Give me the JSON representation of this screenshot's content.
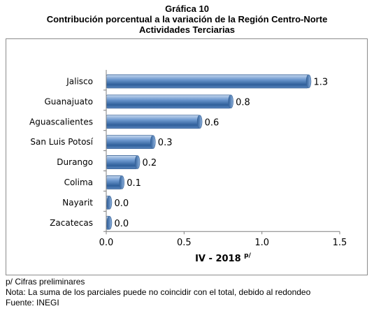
{
  "header": {
    "figure_label": "Gráfica 10",
    "title_line1": "Contribución porcentual a la variación de la Región Centro-Norte",
    "title_line2": "Actividades Terciarias"
  },
  "chart_data": {
    "type": "bar",
    "orientation": "horizontal",
    "categories": [
      "Jalisco",
      "Guanajuato",
      "Aguascalientes",
      "San Luis Potosí",
      "Durango",
      "Colima",
      "Nayarit",
      "Zacatecas"
    ],
    "values": [
      1.3,
      0.8,
      0.6,
      0.3,
      0.2,
      0.1,
      0.02,
      0.02
    ],
    "data_labels": [
      "1.3",
      "0.8",
      "0.6",
      "0.3",
      "0.2",
      "0.1",
      "0.0",
      "0.0"
    ],
    "xlabel": "IV - 2018",
    "xlabel_superscript": "p/",
    "xlim": [
      0,
      1.5
    ],
    "xticks": [
      0.0,
      0.5,
      1.0,
      1.5
    ],
    "xtick_labels": [
      "0.0",
      "0.5",
      "1.0",
      "1.5"
    ],
    "grid": false,
    "bar_color": "#4f81bd"
  },
  "notes": {
    "preliminary": "p/ Cifras preliminares",
    "rounding": "Nota: La suma de los parciales puede no coincidir con el total, debido al redondeo",
    "source": "Fuente: INEGI"
  }
}
